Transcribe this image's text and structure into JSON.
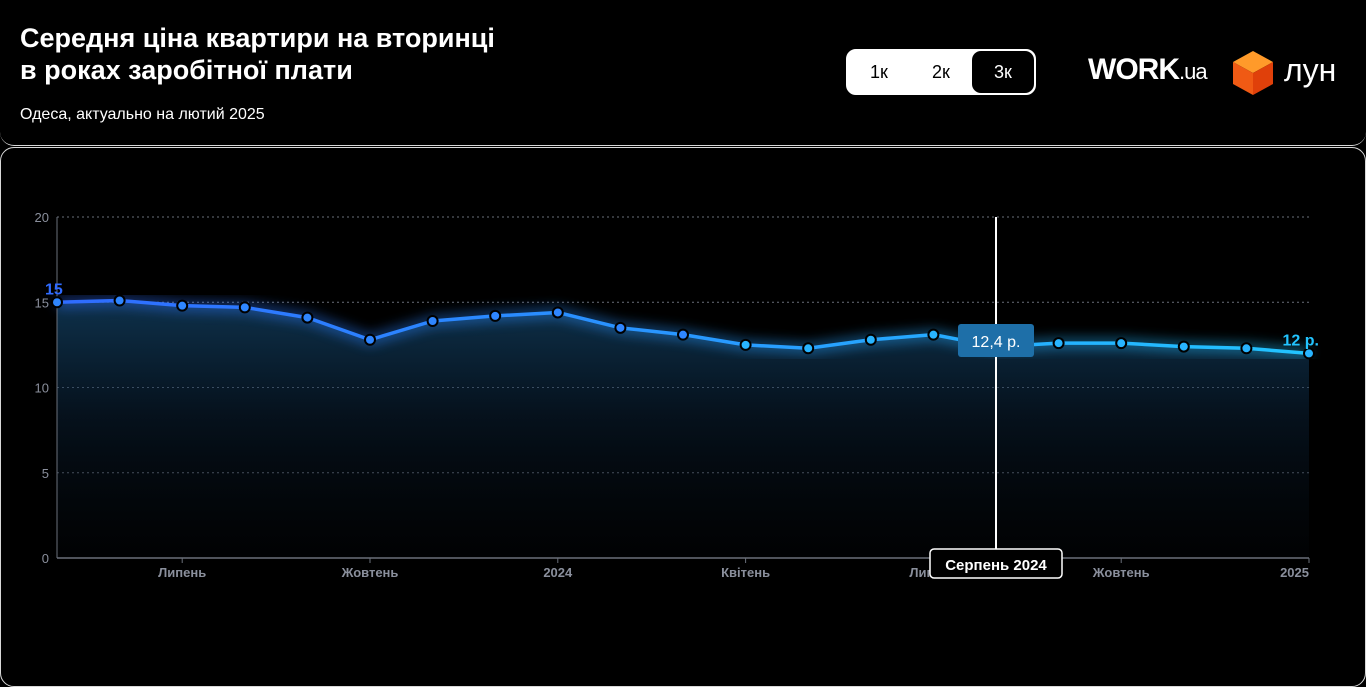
{
  "header": {
    "title_line1": "Середня ціна квартири на вторинці",
    "title_line2": "в роках заробітної плати",
    "subtitle": "Одеса, актуально на лютий 2025"
  },
  "toggle": {
    "options": [
      "1к",
      "2к",
      "3к"
    ],
    "selected": "3к"
  },
  "logos": {
    "work": "WORK",
    "work_suffix": ".ua",
    "lun": "ЛУН"
  },
  "chart_data": {
    "type": "line",
    "x": [
      "2023-05",
      "2023-06",
      "2023-07",
      "2023-08",
      "2023-09",
      "2023-10",
      "2023-11",
      "2023-12",
      "2024-01",
      "2024-02",
      "2024-03",
      "2024-04",
      "2024-05",
      "2024-06",
      "2024-07",
      "2024-08",
      "2024-09",
      "2024-10",
      "2024-11",
      "2024-12",
      "2025-01"
    ],
    "values": [
      15.0,
      15.1,
      14.8,
      14.7,
      14.1,
      12.8,
      13.9,
      14.2,
      14.4,
      13.5,
      13.1,
      12.5,
      12.3,
      12.8,
      13.1,
      12.4,
      12.6,
      12.6,
      12.4,
      12.3,
      12.0
    ],
    "ylim": [
      0,
      20
    ],
    "yticks": [
      "0",
      "5",
      "10",
      "15",
      "20"
    ],
    "xticks": [
      {
        "label": "Липень",
        "x": "2023-07"
      },
      {
        "label": "Жовтень",
        "x": "2023-10"
      },
      {
        "label": "2024",
        "x": "2024-01"
      },
      {
        "label": "Квітень",
        "x": "2024-04"
      },
      {
        "label": "Липень",
        "x": "2024-07"
      },
      {
        "label": "Жовтень",
        "x": "2024-10"
      },
      {
        "label": "2025",
        "x": "2025-01"
      }
    ],
    "start_label": "15",
    "end_label": "12 р.",
    "tooltip": {
      "value": "12,4 р.",
      "date": "Серпень 2024",
      "index": 15
    },
    "grid": true,
    "colors": {
      "start": "#2f6bff",
      "end": "#22c4ff",
      "tooltip": "#1e6fa8"
    }
  }
}
